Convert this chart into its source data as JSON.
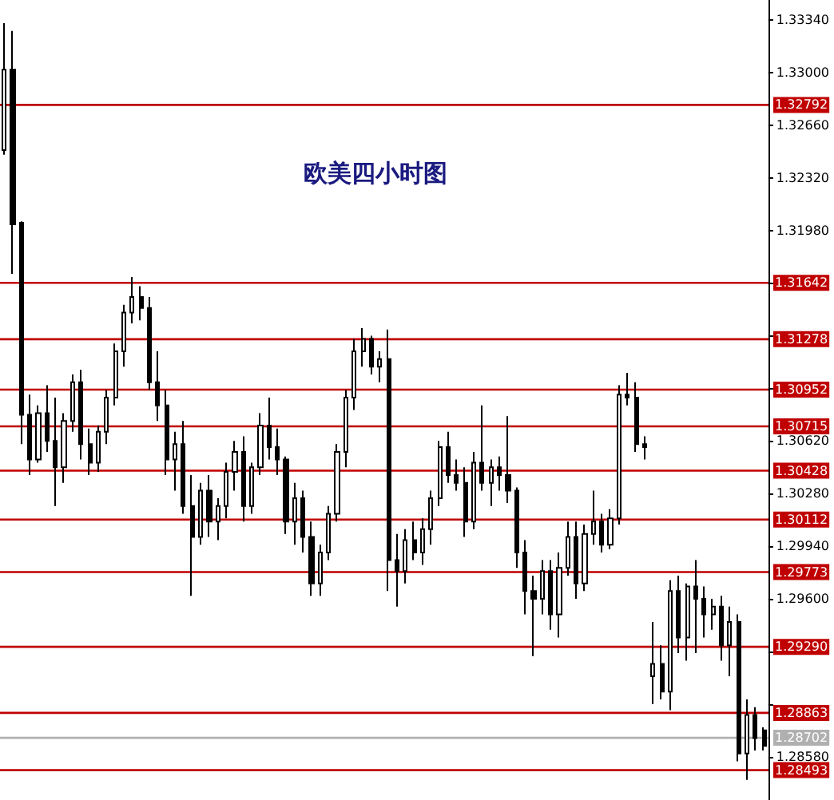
{
  "chart_data": {
    "type": "candlestick",
    "title": "欧美四小时图",
    "color": "#000000",
    "categories": [
      null,
      null,
      null,
      null,
      null,
      null,
      null,
      null,
      null,
      null,
      null,
      null,
      null,
      null,
      null,
      null,
      null,
      null,
      null,
      null,
      null,
      null,
      null,
      null,
      null,
      null,
      null,
      null,
      null,
      null,
      null,
      null,
      null,
      null,
      null,
      null,
      null,
      null,
      null,
      null,
      null,
      null,
      null,
      null,
      null,
      null,
      null,
      null,
      null,
      null,
      null,
      null,
      null,
      null,
      null,
      null,
      null,
      null,
      null,
      null,
      null,
      null,
      null,
      null,
      null,
      null,
      null,
      null,
      null,
      null,
      null,
      null,
      null,
      null,
      null,
      null,
      null,
      null,
      null,
      null,
      null,
      null,
      null,
      null,
      null,
      null,
      null,
      null,
      null,
      null
    ],
    "ohlc": [
      [
        1.325,
        1.3332,
        1.3247,
        1.3302
      ],
      [
        1.3302,
        1.3327,
        1.317,
        1.3202
      ],
      [
        1.3203,
        1.3204,
        1.306,
        1.3079
      ],
      [
        1.3079,
        1.3092,
        1.304,
        1.305
      ],
      [
        1.305,
        1.3085,
        1.3048,
        1.308
      ],
      [
        1.308,
        1.3098,
        1.3055,
        1.3062
      ],
      [
        1.3062,
        1.309,
        1.302,
        1.3045
      ],
      [
        1.3045,
        1.308,
        1.3035,
        1.3075
      ],
      [
        1.3075,
        1.3105,
        1.3068,
        1.31
      ],
      [
        1.31,
        1.3108,
        1.305,
        1.306
      ],
      [
        1.306,
        1.307,
        1.304,
        1.3048
      ],
      [
        1.3048,
        1.3072,
        1.3042,
        1.3068
      ],
      [
        1.3068,
        1.3095,
        1.306,
        1.309
      ],
      [
        1.309,
        1.3125,
        1.3085,
        1.312
      ],
      [
        1.312,
        1.315,
        1.311,
        1.3145
      ],
      [
        1.3145,
        1.3168,
        1.3138,
        1.3155
      ],
      [
        1.3155,
        1.3162,
        1.314,
        1.3148
      ],
      [
        1.3148,
        1.3155,
        1.3095,
        1.31
      ],
      [
        1.31,
        1.312,
        1.3075,
        1.3085
      ],
      [
        1.3085,
        1.3095,
        1.304,
        1.305
      ],
      [
        1.305,
        1.3068,
        1.303,
        1.306
      ],
      [
        1.306,
        1.3075,
        1.3015,
        1.302
      ],
      [
        1.302,
        1.304,
        1.2962,
        1.3
      ],
      [
        1.3,
        1.3035,
        1.2995,
        1.303
      ],
      [
        1.303,
        1.304,
        1.3,
        1.301
      ],
      [
        1.301,
        1.3025,
        1.2998,
        1.302
      ],
      [
        1.302,
        1.3048,
        1.3012,
        1.3042
      ],
      [
        1.3042,
        1.3062,
        1.303,
        1.3055
      ],
      [
        1.3055,
        1.3065,
        1.301,
        1.302
      ],
      [
        1.302,
        1.3048,
        1.3015,
        1.3045
      ],
      [
        1.3045,
        1.308,
        1.304,
        1.3072
      ],
      [
        1.3072,
        1.309,
        1.305,
        1.3058
      ],
      [
        1.3058,
        1.307,
        1.304,
        1.305
      ],
      [
        1.305,
        1.3052,
        1.3002,
        1.301
      ],
      [
        1.301,
        1.3035,
        1.2995,
        1.3025
      ],
      [
        1.3025,
        1.303,
        1.299,
        1.3
      ],
      [
        1.3,
        1.301,
        1.2962,
        1.297
      ],
      [
        1.297,
        1.2995,
        1.2962,
        1.299
      ],
      [
        1.299,
        1.302,
        1.2985,
        1.3015
      ],
      [
        1.3015,
        1.306,
        1.301,
        1.3055
      ],
      [
        1.3055,
        1.3095,
        1.3045,
        1.309
      ],
      [
        1.309,
        1.3128,
        1.3082,
        1.312
      ],
      [
        1.312,
        1.3135,
        1.311,
        1.3128
      ],
      [
        1.3128,
        1.313,
        1.3105,
        1.311
      ],
      [
        1.311,
        1.312,
        1.31,
        1.3115
      ],
      [
        1.3115,
        1.3134,
        1.2965,
        1.2985
      ],
      [
        1.2985,
        1.3002,
        1.2955,
        1.2978
      ],
      [
        1.2978,
        1.3005,
        1.297,
        1.2998
      ],
      [
        1.2998,
        1.301,
        1.2985,
        1.299
      ],
      [
        1.299,
        1.3012,
        1.2982,
        1.3005
      ],
      [
        1.3005,
        1.303,
        1.2995,
        1.3025
      ],
      [
        1.3025,
        1.3062,
        1.302,
        1.3058
      ],
      [
        1.3058,
        1.3068,
        1.3035,
        1.304
      ],
      [
        1.304,
        1.305,
        1.303,
        1.3035
      ],
      [
        1.3035,
        1.3045,
        1.3,
        1.301
      ],
      [
        1.301,
        1.3055,
        1.3005,
        1.3048
      ],
      [
        1.3048,
        1.3085,
        1.303,
        1.3035
      ],
      [
        1.3035,
        1.305,
        1.302,
        1.3045
      ],
      [
        1.3045,
        1.3052,
        1.303,
        1.304
      ],
      [
        1.304,
        1.3078,
        1.3022,
        1.303
      ],
      [
        1.303,
        1.3032,
        1.298,
        1.299
      ],
      [
        1.299,
        1.2998,
        1.295,
        1.2965
      ],
      [
        1.2965,
        1.2975,
        1.2923,
        1.296
      ],
      [
        1.296,
        1.2985,
        1.295,
        1.2978
      ],
      [
        1.2978,
        1.2985,
        1.294,
        1.295
      ],
      [
        1.295,
        1.299,
        1.2935,
        1.298
      ],
      [
        1.298,
        1.301,
        1.2975,
        1.3
      ],
      [
        1.3,
        1.301,
        1.296,
        1.297
      ],
      [
        1.297,
        1.3008,
        1.2965,
        1.3002
      ],
      [
        1.3002,
        1.303,
        1.2995,
        1.301
      ],
      [
        1.301,
        1.3015,
        1.299,
        1.2995
      ],
      [
        1.2995,
        1.3018,
        1.2992,
        1.3012
      ],
      [
        1.3012,
        1.3098,
        1.3008,
        1.3092
      ],
      [
        1.3092,
        1.3106,
        1.3085,
        1.309
      ],
      [
        1.309,
        1.31,
        1.3055,
        1.306
      ],
      [
        1.306,
        1.3065,
        1.305,
        1.3058
      ],
      [
        1.291,
        1.2945,
        1.2892,
        1.2918
      ],
      [
        1.2918,
        1.293,
        1.2895,
        1.29
      ],
      [
        1.29,
        1.2972,
        1.2888,
        1.2965
      ],
      [
        1.2965,
        1.2975,
        1.2925,
        1.2935
      ],
      [
        1.2935,
        1.297,
        1.292,
        1.2968
      ],
      [
        1.2968,
        1.2985,
        1.2925,
        1.296
      ],
      [
        1.296,
        1.2968,
        1.2935,
        1.295
      ],
      [
        1.295,
        1.296,
        1.294,
        1.2955
      ],
      [
        1.2955,
        1.2962,
        1.292,
        1.293
      ],
      [
        1.293,
        1.2955,
        1.291,
        1.2945
      ],
      [
        1.2945,
        1.295,
        1.2855,
        1.286
      ],
      [
        1.286,
        1.2895,
        1.2843,
        1.2885
      ],
      [
        1.2885,
        1.289,
        1.2862,
        1.287
      ],
      [
        1.2875,
        1.2877,
        1.2862,
        1.2865
      ]
    ],
    "ylim": [
      1.283,
      1.3347
    ],
    "yticks": [
      {
        "value": 1.3334,
        "label": "1.33340"
      },
      {
        "value": 1.33,
        "label": "1.33000"
      },
      {
        "value": 1.3266,
        "label": "1.32660"
      },
      {
        "value": 1.3232,
        "label": "1.32320"
      },
      {
        "value": 1.3198,
        "label": "1.31980"
      },
      {
        "value": 1.3164,
        "label": null
      },
      {
        "value": 1.313,
        "label": null
      },
      {
        "value": 1.3096,
        "label": null
      },
      {
        "value": 1.3062,
        "label": "1.30620"
      },
      {
        "value": 1.3028,
        "label": "1.30280"
      },
      {
        "value": 1.2994,
        "label": "1.29940"
      },
      {
        "value": 1.296,
        "label": "1.29600"
      },
      {
        "value": 1.2926,
        "label": null
      },
      {
        "value": 1.2892,
        "label": null
      },
      {
        "value": 1.2858,
        "label": "1.28580"
      }
    ],
    "ref_lines": [
      {
        "axis": "y",
        "value": 1.32792,
        "label": "1.32792",
        "color": "#c00000"
      },
      {
        "axis": "y",
        "value": 1.31642,
        "label": "1.31642",
        "color": "#c00000"
      },
      {
        "axis": "y",
        "value": 1.31278,
        "label": "1.31278",
        "color": "#c00000"
      },
      {
        "axis": "y",
        "value": 1.30952,
        "label": "1.30952",
        "color": "#c00000"
      },
      {
        "axis": "y",
        "value": 1.30715,
        "label": "1.30715",
        "color": "#c00000"
      },
      {
        "axis": "y",
        "value": 1.30428,
        "label": "1.30428",
        "color": "#c00000"
      },
      {
        "axis": "y",
        "value": 1.30112,
        "label": "1.30112",
        "color": "#c00000"
      },
      {
        "axis": "y",
        "value": 1.29773,
        "label": "1.29773",
        "color": "#c00000"
      },
      {
        "axis": "y",
        "value": 1.2929,
        "label": "1.29290",
        "color": "#c00000"
      },
      {
        "axis": "y",
        "value": 1.28863,
        "label": "1.28863",
        "color": "#c00000"
      },
      {
        "axis": "y",
        "value": 1.28702,
        "label": "1.28702",
        "color": "#b0b0b0"
      },
      {
        "axis": "y",
        "value": 1.28493,
        "label": "1.28493",
        "color": "#c00000"
      }
    ],
    "grid": false,
    "tick_labels": "y"
  }
}
